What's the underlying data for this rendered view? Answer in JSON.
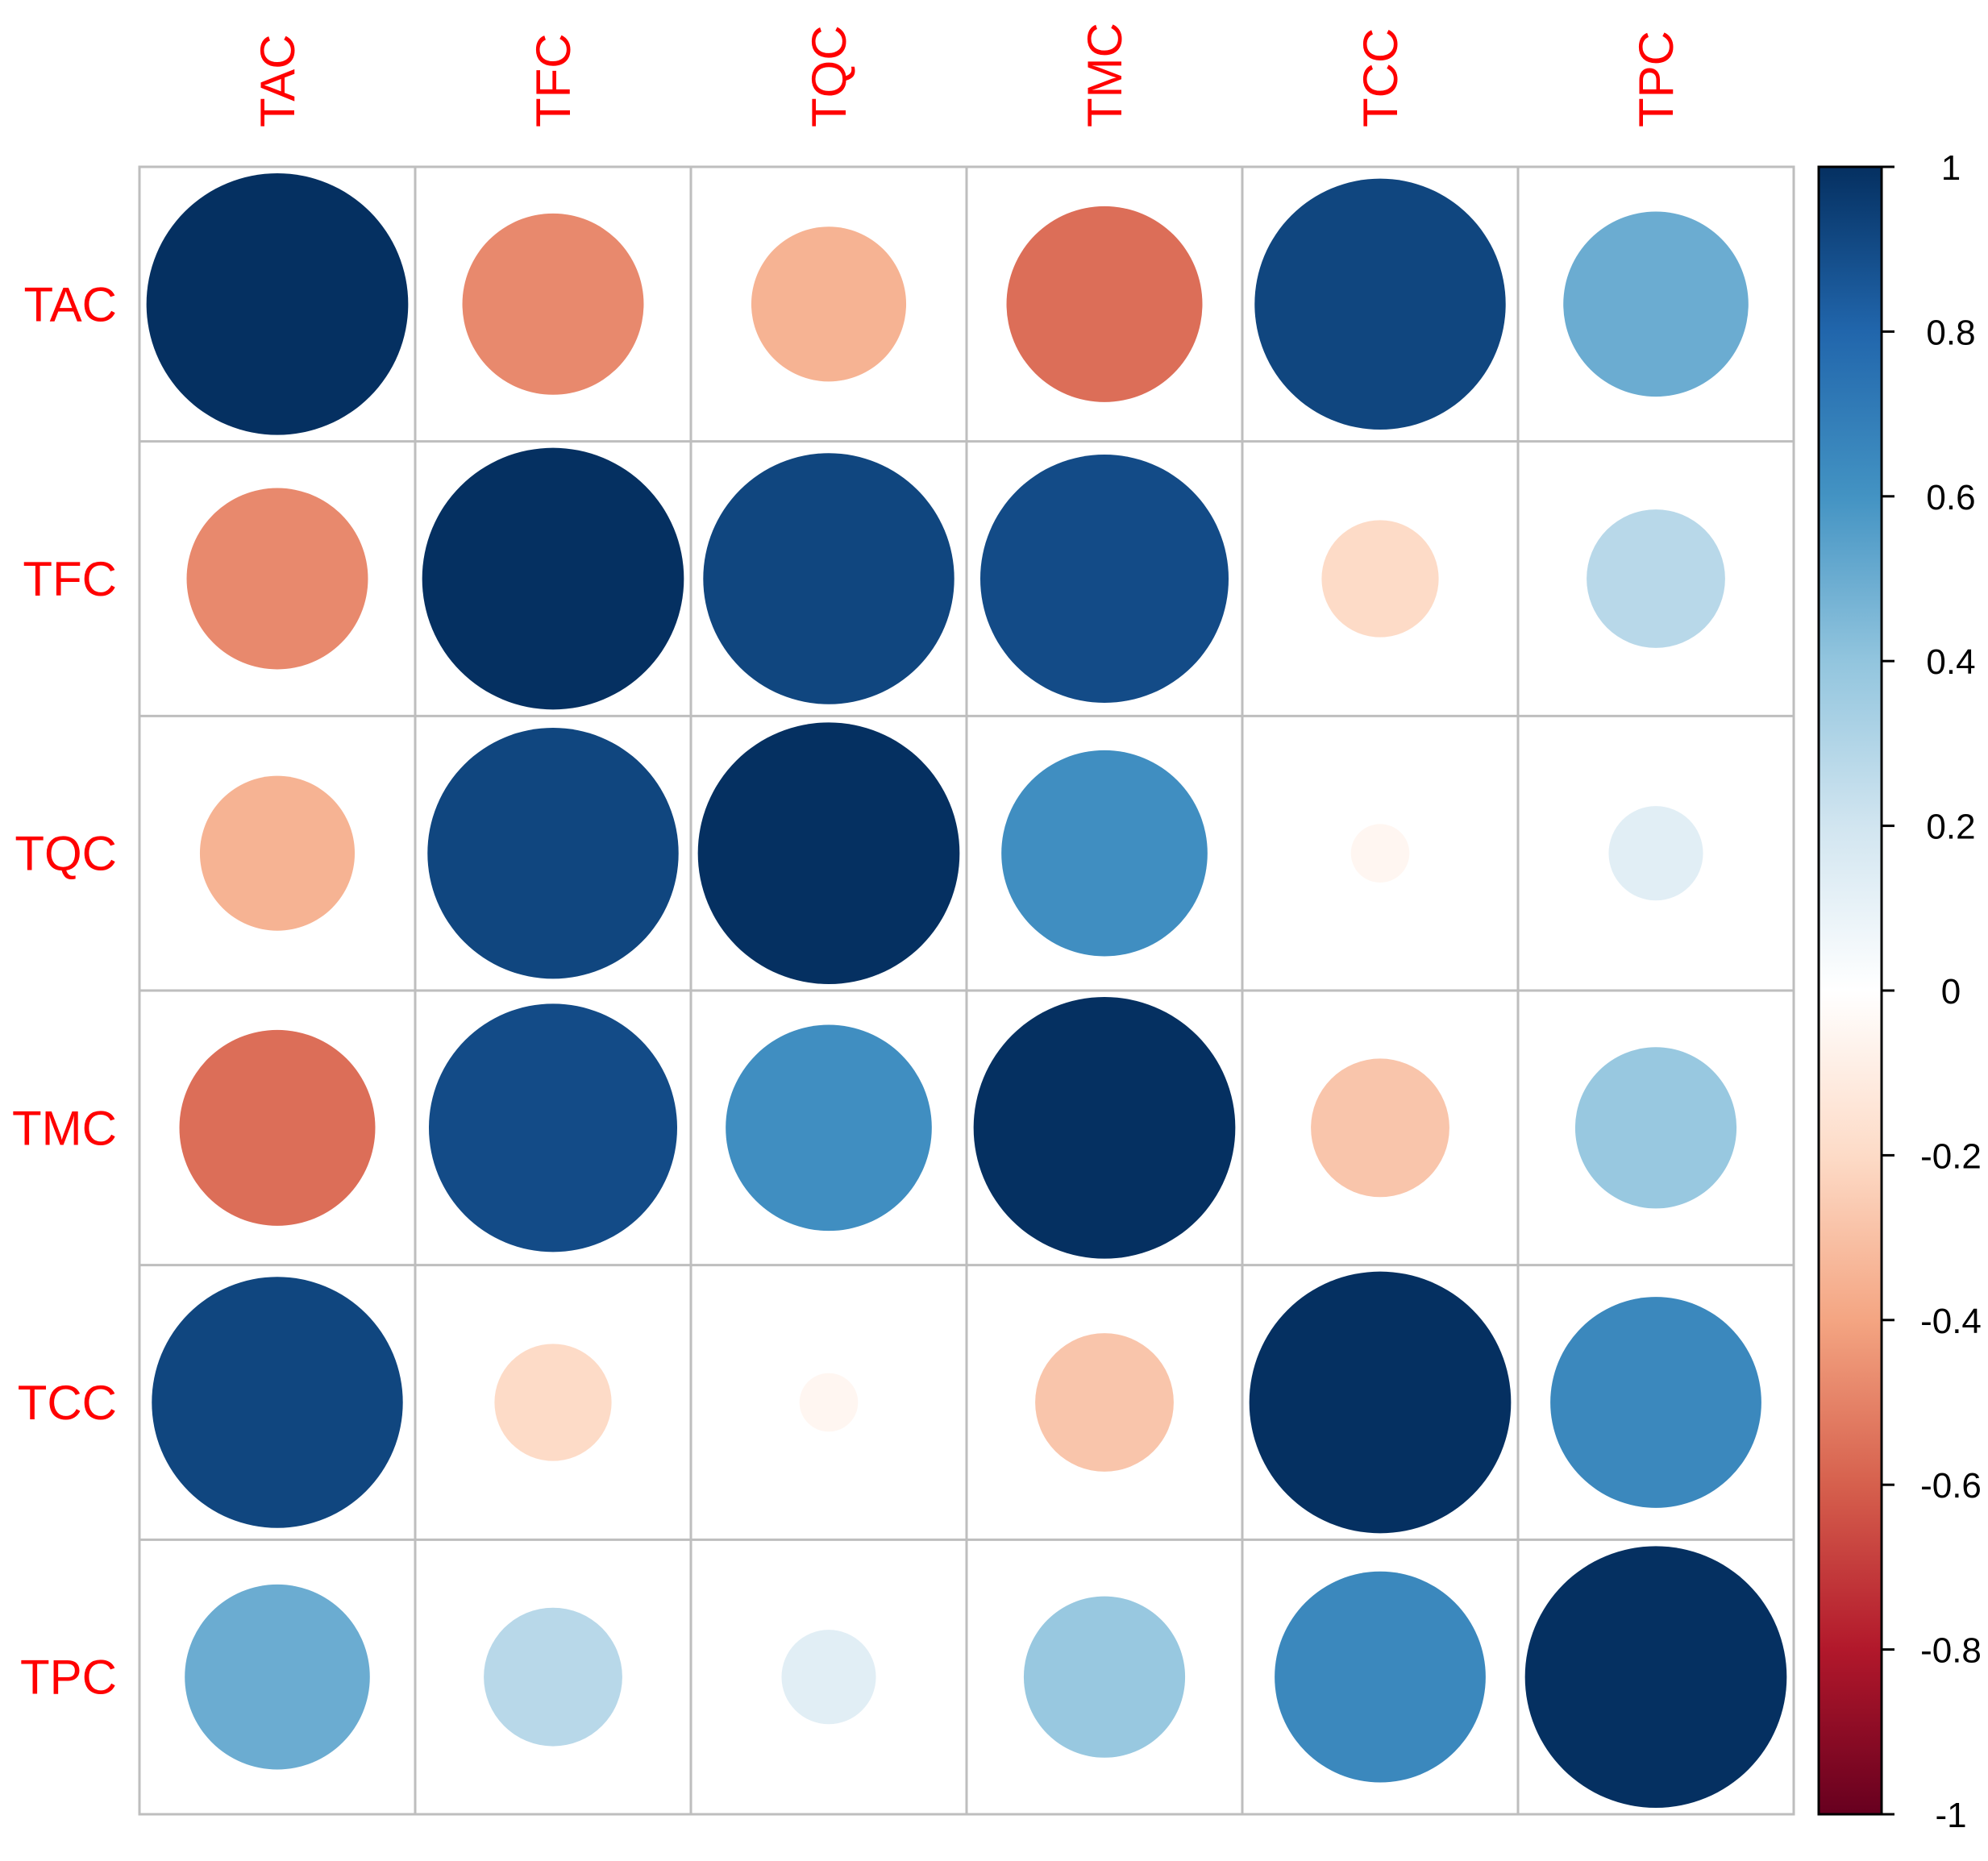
{
  "chart_data": {
    "type": "heatmap",
    "variables": [
      "TAC",
      "TFC",
      "TQC",
      "TMC",
      "TCC",
      "TPC"
    ],
    "matrix": [
      [
        1.0,
        -0.48,
        -0.35,
        -0.56,
        0.92,
        0.5
      ],
      [
        -0.48,
        1.0,
        0.92,
        0.9,
        -0.2,
        0.28
      ],
      [
        -0.35,
        0.92,
        1.0,
        0.62,
        -0.05,
        0.13
      ],
      [
        -0.56,
        0.9,
        0.62,
        1.0,
        -0.28,
        0.38
      ],
      [
        0.92,
        -0.2,
        -0.05,
        -0.28,
        1.0,
        0.65
      ],
      [
        0.5,
        0.28,
        0.13,
        0.38,
        0.65,
        1.0
      ]
    ],
    "colorbar": {
      "range": [
        -1,
        1
      ],
      "tick_labels": [
        "1",
        "0.8",
        "0.6",
        "0.4",
        "0.2",
        "0",
        "-0.2",
        "-0.4",
        "-0.6",
        "-0.8",
        "-1"
      ],
      "tick_values": [
        1,
        0.8,
        0.6,
        0.4,
        0.2,
        0,
        -0.2,
        -0.4,
        -0.6,
        -0.8,
        -1
      ],
      "palette": [
        "#67001F",
        "#B2182B",
        "#D6604D",
        "#F4A582",
        "#FDDBC7",
        "#FFFFFF",
        "#D1E5F0",
        "#92C5DE",
        "#4393C3",
        "#2166AC",
        "#053061"
      ]
    },
    "label_color": "#FF0000",
    "grid": true,
    "legend": "right"
  }
}
